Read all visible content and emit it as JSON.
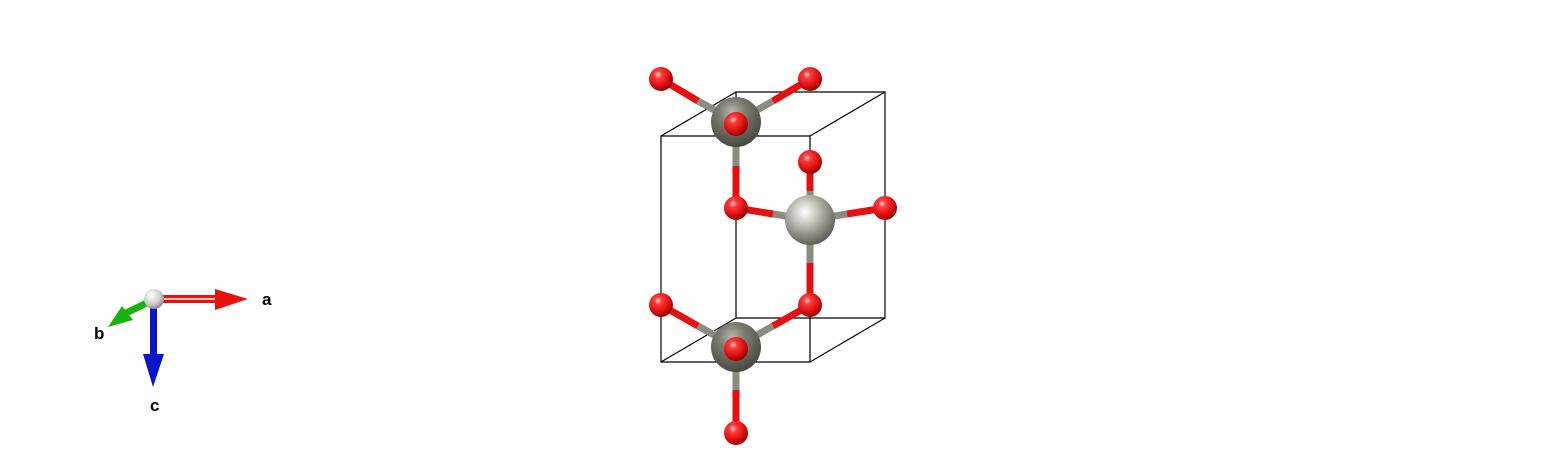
{
  "axes": {
    "a": {
      "label": "a",
      "color": "#e8110c"
    },
    "b": {
      "label": "b",
      "color": "#16b30e"
    },
    "c": {
      "label": "c",
      "color": "#0a14c8"
    }
  },
  "elements": {
    "metal": {
      "color": "#8c8b80",
      "role": "large grey atom"
    },
    "oxygen": {
      "color": "#e60f0f",
      "role": "small red atom"
    }
  },
  "structure": {
    "unit_cell": "box outline",
    "metal_atoms": 3,
    "oxygen_atoms": 10
  }
}
